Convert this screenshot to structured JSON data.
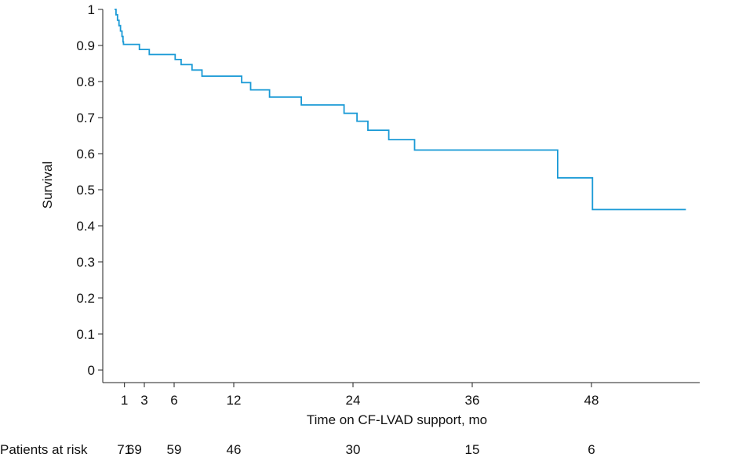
{
  "chart_data": {
    "type": "line",
    "title": "",
    "xlabel": "Time on CF-LVAD support, mo",
    "ylabel": "Survival",
    "xlim": [
      -2,
      58
    ],
    "ylim": [
      0,
      1
    ],
    "x_ticks": [
      1,
      3,
      6,
      12,
      24,
      36,
      48
    ],
    "x_tick_labels": [
      "1",
      "3",
      "6",
      "12",
      "24",
      "36",
      "48"
    ],
    "y_ticks": [
      0,
      0.1,
      0.2,
      0.3,
      0.4,
      0.5,
      0.6,
      0.7,
      0.8,
      0.9,
      1
    ],
    "y_tick_labels": [
      "0",
      "0.1",
      "0.2",
      "0.3",
      "0.4",
      "0.5",
      "0.6",
      "0.7",
      "0.8",
      "0.9",
      "1"
    ],
    "grid": false,
    "line_color": "#1a9ad6",
    "series": [
      {
        "points": [
          [
            0,
            1.0
          ],
          [
            0.15,
            0.985
          ],
          [
            0.3,
            0.97
          ],
          [
            0.45,
            0.955
          ],
          [
            0.6,
            0.94
          ],
          [
            0.75,
            0.925
          ],
          [
            0.85,
            0.91
          ],
          [
            0.9,
            0.903
          ],
          [
            2.5,
            0.889
          ],
          [
            3.5,
            0.875
          ],
          [
            6.1,
            0.861
          ],
          [
            6.7,
            0.847
          ],
          [
            7.8,
            0.832
          ],
          [
            8.8,
            0.815
          ],
          [
            12.8,
            0.797
          ],
          [
            13.7,
            0.777
          ],
          [
            15.6,
            0.757
          ],
          [
            18.8,
            0.735
          ],
          [
            23.1,
            0.712
          ],
          [
            24.4,
            0.69
          ],
          [
            25.5,
            0.665
          ],
          [
            27.6,
            0.639
          ],
          [
            30.2,
            0.61
          ],
          [
            44.6,
            0.533
          ],
          [
            48.1,
            0.445
          ],
          [
            57.5,
            0.445
          ]
        ]
      }
    ],
    "risk_table": {
      "label": "Patients at risk",
      "x": [
        1,
        2,
        6,
        12,
        24,
        36,
        48
      ],
      "values": [
        "71",
        "69",
        "59",
        "46",
        "30",
        "15",
        "6"
      ]
    }
  }
}
